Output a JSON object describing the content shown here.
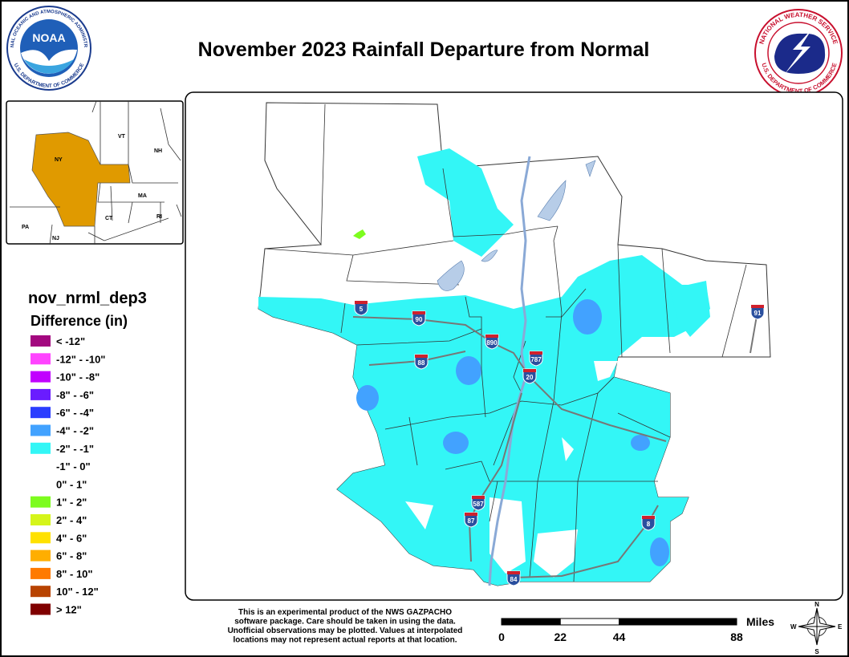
{
  "title": "November 2023 Rainfall Departure from Normal",
  "logos": {
    "noaa": {
      "name": "NOAA",
      "top": "NATIONAL OCEANIC AND ATMOSPHERIC ADMINISTRATION",
      "bottom": "U.S. DEPARTMENT OF COMMERCE"
    },
    "nws": {
      "top": "NATIONAL WEATHER SERVICE",
      "bottom": "U.S. DEPARTMENT OF COMMERCE"
    }
  },
  "inset": {
    "states": [
      "NY",
      "VT",
      "NH",
      "MA",
      "CT",
      "RI",
      "PA",
      "NJ"
    ]
  },
  "legend": {
    "title": "nov_nrml_dep3",
    "subtitle": "Difference (in)",
    "items": [
      {
        "label": "< -12\"",
        "color": "#a3087f"
      },
      {
        "label": "-12\" - -10\"",
        "color": "#ff44ff"
      },
      {
        "label": "-10\" - -8\"",
        "color": "#c100ff"
      },
      {
        "label": "-8\" - -6\"",
        "color": "#6a1cff"
      },
      {
        "label": "-6\" - -4\"",
        "color": "#2b3dff"
      },
      {
        "label": "-4\" - -2\"",
        "color": "#42a2ff"
      },
      {
        "label": "-2\" - -1\"",
        "color": "#33f6f6"
      },
      {
        "label": "-1\" - 0\"",
        "color": "#ffffff"
      },
      {
        "label": "0\" - 1\"",
        "color": "#ffffff"
      },
      {
        "label": "1\" - 2\"",
        "color": "#7dfc1e"
      },
      {
        "label": "2\" - 4\"",
        "color": "#d5f51a"
      },
      {
        "label": "4\" - 6\"",
        "color": "#ffe100"
      },
      {
        "label": "6\" - 8\"",
        "color": "#ffae00"
      },
      {
        "label": "8\" - 10\"",
        "color": "#ff7a00"
      },
      {
        "label": "10\" - 12\"",
        "color": "#b84300"
      },
      {
        "label": "> 12\"",
        "color": "#800000"
      }
    ]
  },
  "map": {
    "interstates": [
      "5",
      "90",
      "890",
      "88",
      "787",
      "20",
      "87",
      "587",
      "84",
      "8",
      "91"
    ]
  },
  "disclaimer": [
    "This is an experimental product of the NWS GAZPACHO",
    "software package. Care should be taken in using the data.",
    "Unofficial observations may be plotted. Values at interpolated",
    "locations may not represent actual reports at that location."
  ],
  "scale": {
    "unit": "Miles",
    "ticks": [
      0,
      22,
      44,
      88
    ]
  },
  "compass": [
    "N",
    "E",
    "S",
    "W"
  ]
}
